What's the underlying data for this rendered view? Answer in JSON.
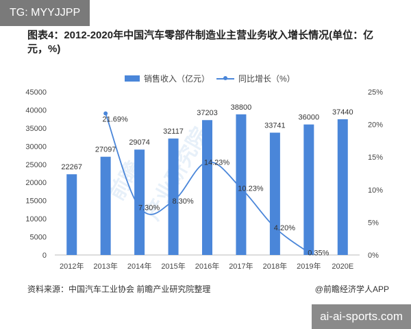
{
  "top_tag": "TG: MYYJJPP",
  "site_tag": "ai-ai-sports.com",
  "source": "资料来源：中国汽车工业协会 前瞻产业研究院整理",
  "credit": "@前瞻经济学人APP",
  "chart_data": {
    "type": "bar",
    "title": "图表4：2012-2020年中国汽车零部件制造业主营业务收入增长情况(单位：亿元，%)",
    "categories": [
      "2012年",
      "2013年",
      "2014年",
      "2015年",
      "2016年",
      "2017年",
      "2018年",
      "2019年",
      "2020E"
    ],
    "series": [
      {
        "name": "销售收入（亿元）",
        "type": "bar",
        "axis": "left",
        "color": "#4a86d9",
        "values": [
          22267,
          27097,
          29074,
          32117,
          37203,
          38800,
          33741,
          36000,
          37440
        ],
        "labels": [
          "22267",
          "27097",
          "29074",
          "32117",
          "37203",
          "38800",
          "33741",
          "36000",
          "37440"
        ]
      },
      {
        "name": "同比增长（%）",
        "type": "line",
        "axis": "right",
        "color": "#4a86d9",
        "values": [
          null,
          21.69,
          7.3,
          8.3,
          14.23,
          10.23,
          4.2,
          0.35,
          null
        ],
        "labels": [
          "",
          "21.69%",
          "7.30%",
          "8.30%",
          "14.23%",
          "10.23%",
          "4.20%",
          "0.35%",
          ""
        ]
      }
    ],
    "y_left": {
      "min": 0,
      "max": 45000,
      "ticks": [
        "0",
        "5000",
        "10000",
        "15000",
        "20000",
        "25000",
        "30000",
        "35000",
        "40000",
        "45000"
      ]
    },
    "y_right": {
      "min": 0,
      "max": 25,
      "ticks": [
        "0%",
        "5%",
        "10%",
        "15%",
        "20%",
        "25%"
      ]
    },
    "grid": false,
    "legend_position": "top-center"
  }
}
